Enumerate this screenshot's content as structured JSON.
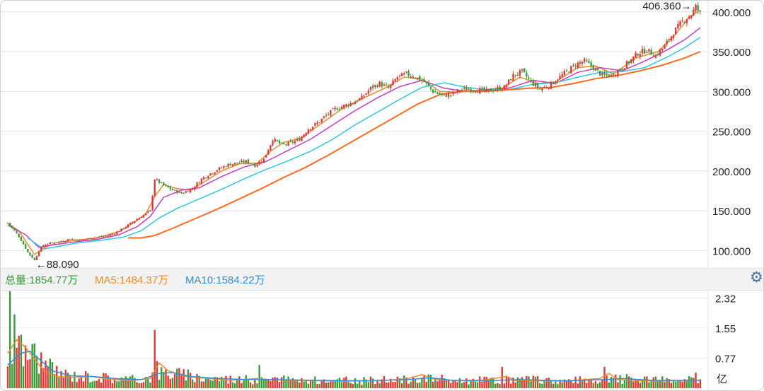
{
  "chart_data": {
    "type": "candlestick",
    "price_axis": {
      "ticks": [
        100,
        150,
        200,
        250,
        300,
        350,
        400
      ],
      "tick_labels": [
        "100.000",
        "150.000",
        "200.000",
        "250.000",
        "300.000",
        "350.000",
        "400.000"
      ],
      "ylim": [
        80,
        414
      ]
    },
    "annotations": {
      "high": {
        "label": "406.360",
        "value": 406.36
      },
      "low": {
        "label": "88.090",
        "value": 88.09
      }
    },
    "close_series": [
      [
        0,
        135
      ],
      [
        5,
        118
      ],
      [
        9,
        98
      ],
      [
        12,
        88.09
      ],
      [
        14,
        100
      ],
      [
        16,
        107
      ],
      [
        20,
        110
      ],
      [
        25,
        112
      ],
      [
        28,
        115
      ],
      [
        32,
        113
      ],
      [
        38,
        116
      ],
      [
        44,
        118
      ],
      [
        48,
        122
      ],
      [
        52,
        128
      ],
      [
        56,
        136
      ],
      [
        60,
        143
      ],
      [
        64,
        150
      ],
      [
        66,
        190
      ],
      [
        70,
        182
      ],
      [
        74,
        176
      ],
      [
        78,
        172
      ],
      [
        83,
        178
      ],
      [
        87,
        190
      ],
      [
        91,
        197
      ],
      [
        95,
        203
      ],
      [
        99,
        208
      ],
      [
        103,
        210
      ],
      [
        107,
        212
      ],
      [
        111,
        207
      ],
      [
        115,
        215
      ],
      [
        119,
        240
      ],
      [
        123,
        233
      ],
      [
        127,
        235
      ],
      [
        131,
        240
      ],
      [
        135,
        253
      ],
      [
        139,
        260
      ],
      [
        143,
        270
      ],
      [
        147,
        278
      ],
      [
        151,
        282
      ],
      [
        155,
        286
      ],
      [
        159,
        292
      ],
      [
        163,
        304
      ],
      [
        167,
        310
      ],
      [
        171,
        304
      ],
      [
        175,
        318
      ],
      [
        179,
        322
      ],
      [
        183,
        318
      ],
      [
        187,
        312
      ],
      [
        191,
        300
      ],
      [
        195,
        295
      ],
      [
        199,
        296
      ],
      [
        203,
        302
      ],
      [
        207,
        303
      ],
      [
        211,
        302
      ],
      [
        215,
        300
      ],
      [
        219,
        303
      ],
      [
        223,
        305
      ],
      [
        227,
        320
      ],
      [
        231,
        325
      ],
      [
        235,
        312
      ],
      [
        239,
        303
      ],
      [
        243,
        307
      ],
      [
        247,
        316
      ],
      [
        251,
        325
      ],
      [
        255,
        334
      ],
      [
        259,
        338
      ],
      [
        263,
        330
      ],
      [
        267,
        320
      ],
      [
        271,
        320
      ],
      [
        275,
        328
      ],
      [
        279,
        337
      ],
      [
        283,
        348
      ],
      [
        287,
        352
      ],
      [
        291,
        345
      ],
      [
        295,
        357
      ],
      [
        299,
        374
      ],
      [
        303,
        388
      ],
      [
        307,
        397
      ],
      [
        309,
        406.36
      ],
      [
        311,
        399
      ]
    ],
    "ma_series": [
      {
        "color": "#f2892a",
        "points": [
          [
            0,
            134
          ],
          [
            5,
            125
          ],
          [
            9,
            108
          ],
          [
            12,
            95
          ],
          [
            16,
            103
          ],
          [
            22,
            110
          ],
          [
            30,
            113
          ],
          [
            40,
            116
          ],
          [
            50,
            124
          ],
          [
            56,
            134
          ],
          [
            62,
            146
          ],
          [
            66,
            168
          ],
          [
            70,
            183
          ],
          [
            76,
            178
          ],
          [
            82,
            176
          ],
          [
            88,
            186
          ],
          [
            96,
            200
          ],
          [
            104,
            209
          ],
          [
            112,
            210
          ],
          [
            118,
            225
          ],
          [
            124,
            236
          ],
          [
            132,
            242
          ],
          [
            140,
            258
          ],
          [
            150,
            278
          ],
          [
            160,
            292
          ],
          [
            170,
            305
          ],
          [
            178,
            318
          ],
          [
            186,
            316
          ],
          [
            194,
            300
          ],
          [
            202,
            299
          ],
          [
            212,
            302
          ],
          [
            222,
            304
          ],
          [
            230,
            318
          ],
          [
            238,
            310
          ],
          [
            246,
            312
          ],
          [
            256,
            330
          ],
          [
            264,
            332
          ],
          [
            272,
            322
          ],
          [
            282,
            342
          ],
          [
            292,
            350
          ],
          [
            300,
            372
          ],
          [
            306,
            393
          ],
          [
            311,
            402
          ]
        ]
      },
      {
        "color": "#c43ec4",
        "points": [
          [
            0,
            132
          ],
          [
            8,
            120
          ],
          [
            14,
            104
          ],
          [
            20,
            107
          ],
          [
            30,
            111
          ],
          [
            40,
            114
          ],
          [
            50,
            120
          ],
          [
            58,
            130
          ],
          [
            64,
            143
          ],
          [
            70,
            167
          ],
          [
            78,
            176
          ],
          [
            86,
            179
          ],
          [
            96,
            193
          ],
          [
            106,
            205
          ],
          [
            116,
            212
          ],
          [
            126,
            226
          ],
          [
            136,
            240
          ],
          [
            146,
            258
          ],
          [
            156,
            276
          ],
          [
            166,
            292
          ],
          [
            176,
            306
          ],
          [
            186,
            314
          ],
          [
            196,
            304
          ],
          [
            206,
            300
          ],
          [
            216,
            301
          ],
          [
            226,
            305
          ],
          [
            236,
            314
          ],
          [
            246,
            310
          ],
          [
            256,
            324
          ],
          [
            266,
            330
          ],
          [
            276,
            326
          ],
          [
            286,
            338
          ],
          [
            296,
            352
          ],
          [
            304,
            365
          ],
          [
            311,
            380
          ]
        ]
      },
      {
        "color": "#2ec8e0",
        "points": [
          [
            9,
            116
          ],
          [
            16,
            102
          ],
          [
            24,
            106
          ],
          [
            32,
            110
          ],
          [
            42,
            113
          ],
          [
            52,
            117
          ],
          [
            60,
            125
          ],
          [
            68,
            141
          ],
          [
            76,
            153
          ],
          [
            86,
            165
          ],
          [
            96,
            177
          ],
          [
            106,
            190
          ],
          [
            116,
            202
          ],
          [
            126,
            213
          ],
          [
            136,
            225
          ],
          [
            146,
            240
          ],
          [
            156,
            258
          ],
          [
            166,
            274
          ],
          [
            176,
            290
          ],
          [
            186,
            305
          ],
          [
            196,
            311
          ],
          [
            206,
            305
          ],
          [
            216,
            302
          ],
          [
            226,
            303
          ],
          [
            236,
            309
          ],
          [
            246,
            311
          ],
          [
            256,
            318
          ],
          [
            266,
            324
          ],
          [
            276,
            325
          ],
          [
            286,
            330
          ],
          [
            296,
            343
          ],
          [
            304,
            355
          ],
          [
            311,
            368
          ]
        ]
      },
      {
        "color": "#ff6a1f",
        "points": [
          [
            54,
            116
          ],
          [
            60,
            116
          ],
          [
            66,
            119
          ],
          [
            74,
            128
          ],
          [
            84,
            140
          ],
          [
            94,
            152
          ],
          [
            104,
            165
          ],
          [
            114,
            178
          ],
          [
            124,
            192
          ],
          [
            134,
            205
          ],
          [
            144,
            220
          ],
          [
            154,
            236
          ],
          [
            164,
            252
          ],
          [
            174,
            268
          ],
          [
            184,
            284
          ],
          [
            194,
            296
          ],
          [
            204,
            300
          ],
          [
            214,
            300
          ],
          [
            224,
            302
          ],
          [
            234,
            304
          ],
          [
            244,
            305
          ],
          [
            254,
            310
          ],
          [
            264,
            316
          ],
          [
            274,
            320
          ],
          [
            284,
            326
          ],
          [
            294,
            333
          ],
          [
            304,
            342
          ],
          [
            311,
            350
          ]
        ]
      }
    ],
    "volume_axis": {
      "tick_labels": [
        "2.32",
        "1.55",
        "0.77"
      ],
      "ticks": [
        2.32,
        1.55,
        0.77
      ],
      "unit": "亿",
      "ylim": [
        0,
        2.55
      ]
    },
    "volume_legend": {
      "total": "总量:1854.77万",
      "ma5": "MA5:1484.37万",
      "ma10": "MA10:1584.22万"
    },
    "volume_spikes": [
      [
        1,
        2.5
      ],
      [
        3,
        1.9
      ],
      [
        5,
        1.35
      ],
      [
        8,
        1.1
      ],
      [
        66,
        1.5
      ],
      [
        67,
        0.7
      ],
      [
        113,
        0.6
      ],
      [
        222,
        0.55
      ],
      [
        268,
        0.55
      ],
      [
        309,
        0.4
      ]
    ],
    "volume_ma5": [
      [
        0,
        0.9
      ],
      [
        4,
        1.25
      ],
      [
        8,
        1.05
      ],
      [
        12,
        0.75
      ],
      [
        16,
        0.45
      ],
      [
        22,
        0.3
      ],
      [
        30,
        0.28
      ],
      [
        38,
        0.3
      ],
      [
        46,
        0.22
      ],
      [
        56,
        0.2
      ],
      [
        64,
        0.25
      ],
      [
        68,
        0.65
      ],
      [
        72,
        0.45
      ],
      [
        80,
        0.3
      ],
      [
        90,
        0.25
      ],
      [
        100,
        0.2
      ],
      [
        112,
        0.25
      ],
      [
        118,
        0.22
      ],
      [
        130,
        0.2
      ],
      [
        150,
        0.18
      ],
      [
        170,
        0.2
      ],
      [
        180,
        0.25
      ],
      [
        186,
        0.35
      ],
      [
        192,
        0.22
      ],
      [
        210,
        0.18
      ],
      [
        224,
        0.3
      ],
      [
        228,
        0.2
      ],
      [
        250,
        0.18
      ],
      [
        266,
        0.25
      ],
      [
        270,
        0.38
      ],
      [
        274,
        0.22
      ],
      [
        290,
        0.18
      ],
      [
        311,
        0.2
      ]
    ],
    "volume_ma10": [
      [
        0,
        0.6
      ],
      [
        6,
        0.9
      ],
      [
        10,
        0.95
      ],
      [
        14,
        0.75
      ],
      [
        20,
        0.45
      ],
      [
        28,
        0.32
      ],
      [
        38,
        0.3
      ],
      [
        50,
        0.24
      ],
      [
        60,
        0.22
      ],
      [
        68,
        0.38
      ],
      [
        74,
        0.4
      ],
      [
        82,
        0.3
      ],
      [
        94,
        0.25
      ],
      [
        108,
        0.22
      ],
      [
        120,
        0.22
      ],
      [
        140,
        0.2
      ],
      [
        160,
        0.19
      ],
      [
        180,
        0.22
      ],
      [
        190,
        0.27
      ],
      [
        200,
        0.2
      ],
      [
        220,
        0.2
      ],
      [
        230,
        0.22
      ],
      [
        250,
        0.19
      ],
      [
        268,
        0.22
      ],
      [
        276,
        0.25
      ],
      [
        290,
        0.2
      ],
      [
        311,
        0.2
      ]
    ]
  },
  "colors": {
    "up": "#e03838",
    "down": "#3a9a3a",
    "grid": "#e3e3e3",
    "text": "#222222"
  },
  "icons": {
    "settings": "gear-icon"
  }
}
